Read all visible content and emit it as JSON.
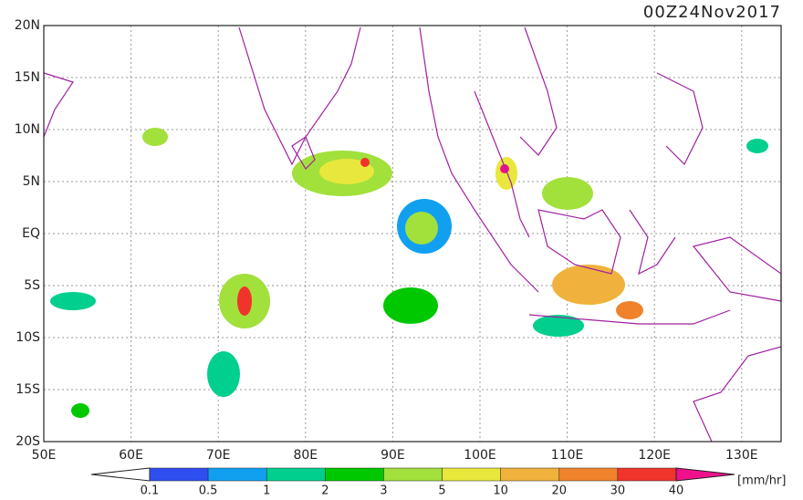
{
  "title": "00Z24Nov2017",
  "lat_labels": [
    "20N",
    "15N",
    "10N",
    "5N",
    "EQ",
    "5S",
    "10S",
    "15S",
    "20S"
  ],
  "lon_labels": [
    "50E",
    "60E",
    "70E",
    "80E",
    "90E",
    "100E",
    "110E",
    "120E",
    "130E"
  ],
  "colorbar": {
    "levels": [
      0.1,
      0.5,
      1,
      2,
      3,
      5,
      10,
      20,
      30,
      40
    ],
    "colors": [
      "#ffffff",
      "#2f4ef0",
      "#11a0f0",
      "#00cf8e",
      "#00c800",
      "#a2e03c",
      "#e8e83c",
      "#f0b23c",
      "#f0822c",
      "#f0342c",
      "#f0108c"
    ],
    "unit": "[mm/hr]"
  }
}
